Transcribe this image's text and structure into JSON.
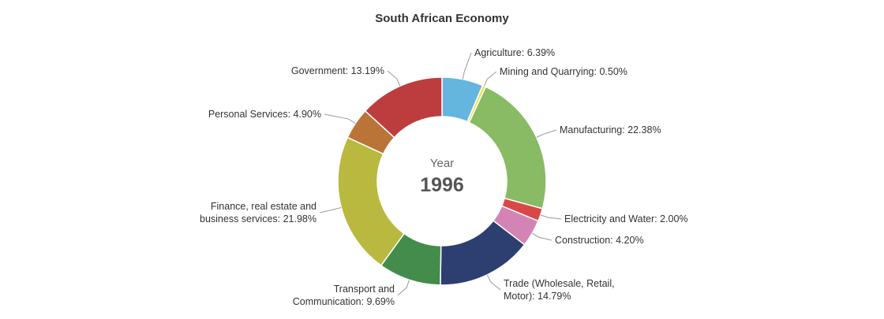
{
  "chart_data": {
    "type": "pie",
    "title": "South African Economy",
    "center_caption": "Year",
    "center_value": "1996",
    "slices": [
      {
        "name": "Agriculture",
        "value": 6.39,
        "label": "Agriculture: 6.39%",
        "color": "#65b6df"
      },
      {
        "name": "Mining and Quarrying",
        "value": 0.5,
        "label": "Mining and Quarrying: 0.50%",
        "color": "#f2e14a"
      },
      {
        "name": "Manufacturing",
        "value": 22.38,
        "label": "Manufacturing: 22.38%",
        "color": "#88bb63"
      },
      {
        "name": "Electricity and Water",
        "value": 2.0,
        "label": "Electricity and Water: 2.00%",
        "color": "#d94848"
      },
      {
        "name": "Construction",
        "value": 4.2,
        "label": "Construction: 4.20%",
        "color": "#d383b4"
      },
      {
        "name": "Trade (Wholesale, Retail, Motor)",
        "value": 14.79,
        "label": "Trade (Wholesale, Retail,|Motor): 14.79%",
        "color": "#2d3e71"
      },
      {
        "name": "Transport and Communication",
        "value": 9.69,
        "label": "Transport and|Communication: 9.69%",
        "color": "#448c4c"
      },
      {
        "name": "Finance, real estate and business services",
        "value": 21.98,
        "label": "Finance, real estate and|business services: 21.98%",
        "color": "#b8b93e"
      },
      {
        "name": "Personal Services",
        "value": 4.9,
        "label": "Personal Services: 4.90%",
        "color": "#bb7438"
      },
      {
        "name": "Government",
        "value": 13.19,
        "label": "Government: 13.19%",
        "color": "#bd3d3e"
      }
    ]
  }
}
